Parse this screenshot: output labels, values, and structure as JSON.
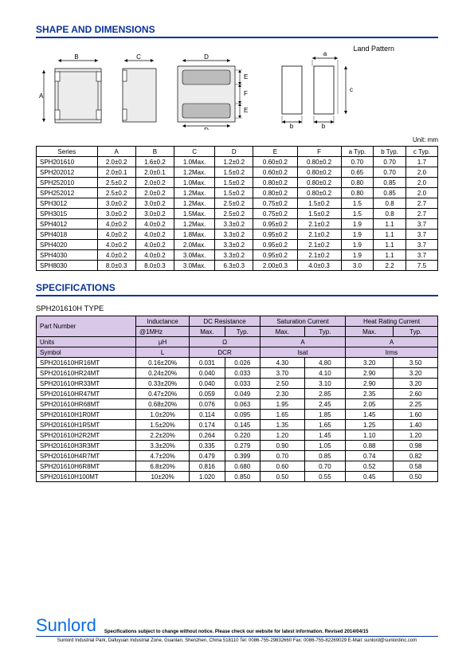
{
  "titles": {
    "shape": "SHAPE AND DIMENSIONS",
    "spec": "SPECIFICATIONS",
    "land": "Land Pattern",
    "unit": "Unit: mm",
    "sub": "SPH201610H TYPE"
  },
  "dim": {
    "headers": [
      "Series",
      "A",
      "B",
      "C",
      "D",
      "E",
      "F",
      "a Typ.",
      "b Typ.",
      "c Typ."
    ],
    "rows": [
      [
        "SPH201610",
        "2.0±0.2",
        "1.6±0.2",
        "1.0Max.",
        "1.2±0.2",
        "0.60±0.2",
        "0.80±0.2",
        "0.70",
        "0.70",
        "1.7"
      ],
      [
        "SPH202012",
        "2.0±0.1",
        "2.0±0.1",
        "1.2Max.",
        "1.5±0.2",
        "0.60±0.2",
        "0.80±0.2",
        "0.65",
        "0.70",
        "2.0"
      ],
      [
        "SPH252010",
        "2.5±0.2",
        "2.0±0.2",
        "1.0Max.",
        "1.5±0.2",
        "0.80±0.2",
        "0.80±0.2",
        "0.80",
        "0.85",
        "2.0"
      ],
      [
        "SPH252012",
        "2.5±0.2",
        "2.0±0.2",
        "1.2Max.",
        "1.5±0.2",
        "0.80±0.2",
        "0.80±0.2",
        "0.80",
        "0.85",
        "2.0"
      ],
      [
        "SPH3012",
        "3.0±0.2",
        "3.0±0.2",
        "1.2Max.",
        "2.5±0.2",
        "0.75±0.2",
        "1.5±0.2",
        "1.5",
        "0.8",
        "2.7"
      ],
      [
        "SPH3015",
        "3.0±0.2",
        "3.0±0.2",
        "1.5Max.",
        "2.5±0.2",
        "0.75±0.2",
        "1.5±0.2",
        "1.5",
        "0.8",
        "2.7"
      ],
      [
        "SPH4012",
        "4.0±0.2",
        "4.0±0.2",
        "1.2Max.",
        "3.3±0.2",
        "0.95±0.2",
        "2.1±0.2",
        "1.9",
        "1.1",
        "3.7"
      ],
      [
        "SPH4018",
        "4.0±0.2",
        "4.0±0.2",
        "1.8Max.",
        "3.3±0.2",
        "0.95±0.2",
        "2.1±0.2",
        "1.9",
        "1.1",
        "3.7"
      ],
      [
        "SPH4020",
        "4.0±0.2",
        "4.0±0.2",
        "2.0Max.",
        "3.3±0.2",
        "0.95±0.2",
        "2.1±0.2",
        "1.9",
        "1.1",
        "3.7"
      ],
      [
        "SPH4030",
        "4.0±0.2",
        "4.0±0.2",
        "3.0Max.",
        "3.3±0.2",
        "0.95±0.2",
        "2.1±0.2",
        "1.9",
        "1.1",
        "3.7"
      ],
      [
        "SPH8030",
        "8.0±0.3",
        "8.0±0.3",
        "3.0Max.",
        "6.3±0.3",
        "2.00±0.3",
        "4.0±0.3",
        "3.0",
        "2.2",
        "7.5"
      ]
    ]
  },
  "spec": {
    "h1": [
      "Part Number",
      "Inductance",
      "DC Resistance",
      "Saturation Current",
      "Heat Rating Current"
    ],
    "h2": [
      "@1MHz",
      "Max.",
      "Typ.",
      "Max.",
      "Typ.",
      "Max.",
      "Typ."
    ],
    "h3": [
      "Units",
      "μH",
      "Ω",
      "A",
      "A"
    ],
    "h4": [
      "Symbol",
      "L",
      "DCR",
      "Isat",
      "Irms"
    ],
    "rows": [
      [
        "SPH201610HR16MT",
        "0.16±20%",
        "0.031",
        "0.026",
        "4.30",
        "4.80",
        "3.20",
        "3.50"
      ],
      [
        "SPH201610HR24MT",
        "0.24±20%",
        "0.040",
        "0.033",
        "3.70",
        "4.10",
        "2.90",
        "3.20"
      ],
      [
        "SPH201610HR33MT",
        "0.33±20%",
        "0.040",
        "0.033",
        "2.50",
        "3.10",
        "2.90",
        "3.20"
      ],
      [
        "SPH201610HR47MT",
        "0.47±20%",
        "0.059",
        "0.049",
        "2.30",
        "2.85",
        "2.35",
        "2.60"
      ],
      [
        "SPH201610HR68MT",
        "0.68±20%",
        "0.076",
        "0.063",
        "1.95",
        "2.45",
        "2.05",
        "2.25"
      ],
      [
        "SPH201610H1R0MT",
        "1.0±20%",
        "0.114",
        "0.095",
        "1.65",
        "1.85",
        "1.45",
        "1.60"
      ],
      [
        "SPH201610H1R5MT",
        "1.5±20%",
        "0.174",
        "0.145",
        "1.35",
        "1.65",
        "1.25",
        "1.40"
      ],
      [
        "SPH201610H2R2MT",
        "2.2±20%",
        "0.264",
        "0.220",
        "1.20",
        "1.45",
        "1.10",
        "1.20"
      ],
      [
        "SPH201610H3R3MT",
        "3.3±20%",
        "0.335",
        "0.279",
        "0.90",
        "1.05",
        "0.88",
        "0.98"
      ],
      [
        "SPH201610H4R7MT",
        "4.7±20%",
        "0.479",
        "0.399",
        "0.70",
        "0.85",
        "0.74",
        "0.82"
      ],
      [
        "SPH201610H6R8MT",
        "6.8±20%",
        "0.816",
        "0.680",
        "0.60",
        "0.70",
        "0.52",
        "0.58"
      ],
      [
        "SPH201610H100MT",
        "10±20%",
        "1.020",
        "0.850",
        "0.50",
        "0.55",
        "0.45",
        "0.50"
      ]
    ]
  },
  "footer": {
    "brand": "Sunlord",
    "note": "Specifications subject to change without notice. Please check our website for latest information.      Revised 2014/04/15",
    "addr": "Sunlord Industrial Park, Dafuyuan Industrial Zone, Guanlan, Shenzhen, China 518110 Tel: 0086-755-29832660 Fax: 0086-755-82269029 E-Mail: sunlord@sunlordinc.com"
  },
  "colors": {
    "heading": "#0a339b",
    "hdr_bg": "#d9c8e8",
    "brand": "#0a6de0",
    "shape_fill": "#ececec",
    "pad_fill": "#bcbcbc"
  }
}
